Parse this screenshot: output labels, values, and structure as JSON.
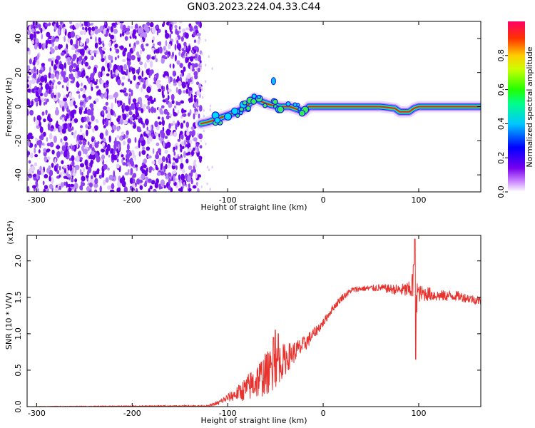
{
  "title": "GN03.2023.224.04.33.C44",
  "chart_data": [
    {
      "type": "heatmap",
      "xlabel": "Height of straight line (km)",
      "ylabel": "Frequency (Hz)",
      "xlim": [
        -310,
        165
      ],
      "ylim": [
        -50,
        50
      ],
      "xticks": [
        -300,
        -200,
        -100,
        0,
        100
      ],
      "yticks": [
        -40,
        -20,
        0,
        20,
        40
      ],
      "noise_region_x": [
        -310,
        -128
      ],
      "ridge": {
        "x": [
          -128,
          -120,
          -110,
          -100,
          -90,
          -80,
          -72,
          -65,
          -55,
          -45,
          -35,
          -25,
          -20,
          -15,
          0,
          20,
          40,
          60,
          75,
          80,
          85,
          90,
          95,
          100,
          120,
          140,
          165
        ],
        "freq": [
          -10,
          -9,
          -7,
          -5,
          -3,
          0,
          5,
          3,
          1,
          0,
          0,
          -2,
          -3,
          0,
          0,
          0,
          0,
          0,
          -1,
          -3,
          -3,
          -3,
          -1,
          0,
          0,
          0,
          0
        ]
      },
      "colorbar": {
        "label": "Normalized spectral amplitude",
        "ticks": [
          0.0,
          0.2,
          0.4,
          0.6,
          0.8
        ],
        "range": [
          0,
          1
        ]
      }
    },
    {
      "type": "line",
      "xlabel": "Height of straight line (km)",
      "ylabel": "SNR (10 * V/V)",
      "multiplier": "(x10⁴)",
      "xlim": [
        -310,
        165
      ],
      "ylim": [
        0,
        2.35
      ],
      "xticks": [
        -300,
        -200,
        -100,
        0,
        100
      ],
      "yticks": [
        0.0,
        0.5,
        1.0,
        1.5,
        2.0
      ],
      "color": "#e8322e",
      "envelope": {
        "x": [
          -310,
          -120,
          -110,
          -100,
          -90,
          -80,
          -70,
          -60,
          -50,
          -40,
          -30,
          -20,
          -10,
          0,
          10,
          20,
          30,
          40,
          60,
          80,
          90,
          95,
          100,
          110,
          120,
          140,
          165
        ],
        "mean": [
          0.0,
          0.01,
          0.05,
          0.12,
          0.18,
          0.25,
          0.35,
          0.45,
          0.55,
          0.65,
          0.75,
          0.85,
          1.0,
          1.15,
          1.35,
          1.5,
          1.6,
          1.62,
          1.63,
          1.6,
          1.6,
          1.7,
          1.55,
          1.55,
          1.52,
          1.52,
          1.45
        ],
        "noise": [
          0.003,
          0.01,
          0.03,
          0.06,
          0.1,
          0.18,
          0.25,
          0.3,
          0.3,
          0.22,
          0.15,
          0.12,
          0.08,
          0.06,
          0.05,
          0.05,
          0.04,
          0.04,
          0.05,
          0.08,
          0.12,
          0.3,
          0.12,
          0.1,
          0.08,
          0.07,
          0.06
        ]
      },
      "spikes": [
        {
          "x": -52,
          "y": 0.95
        },
        {
          "x": -50,
          "y": 1.05
        },
        {
          "x": -47,
          "y": 1.0
        },
        {
          "x": 95,
          "y": 1.95
        },
        {
          "x": 96,
          "y": 2.3
        },
        {
          "x": 97,
          "y": 0.65
        },
        {
          "x": 98,
          "y": 1.3
        }
      ]
    }
  ]
}
